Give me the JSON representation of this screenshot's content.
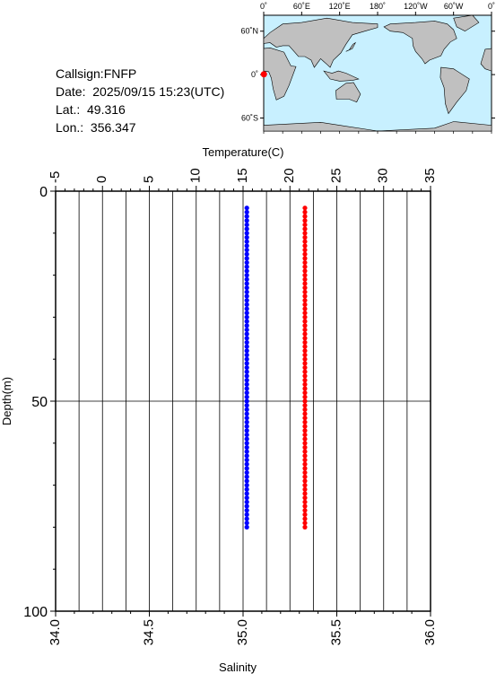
{
  "info": {
    "callsign": "Callsign:FNFP",
    "date": "Date:  2025/09/15 15:23(UTC)",
    "lat": "Lat.:  49.316",
    "lon": "Lon.:  356.347"
  },
  "map": {
    "top_ticks": [
      "0˚",
      "60˚E",
      "120˚E",
      "180˚",
      "120˚W",
      "60˚W",
      "0˚"
    ],
    "left_ticks": [
      "60˚N",
      "0˚",
      "60˚S"
    ],
    "marker_color": "#ff0000",
    "ocean_color": "#c8f0ff",
    "land_color": "#c0c0c0"
  },
  "chart_data": {
    "type": "scatter",
    "top_axis": {
      "label": "Temperature(C)",
      "range": [
        -5,
        35
      ],
      "ticks": [
        "-5",
        "0",
        "5",
        "10",
        "15",
        "20",
        "25",
        "30",
        "35"
      ]
    },
    "bottom_axis": {
      "label": "Salinity",
      "range": [
        34.0,
        36.0
      ],
      "ticks": [
        "34.0",
        "34.5",
        "35.0",
        "35.5",
        "36.0"
      ]
    },
    "y_axis": {
      "label": "Depth(m)",
      "range": [
        0,
        100
      ],
      "inverted": true,
      "ticks": [
        "0",
        "50",
        "100"
      ]
    },
    "grid": true,
    "series": [
      {
        "color": "#ff0000",
        "axis": "temperature",
        "points": [
          [
            21.6,
            4
          ],
          [
            21.6,
            5
          ],
          [
            21.6,
            6
          ],
          [
            21.6,
            7
          ],
          [
            21.6,
            8
          ],
          [
            21.6,
            9
          ],
          [
            21.6,
            10
          ],
          [
            21.6,
            11
          ],
          [
            21.6,
            12
          ],
          [
            21.6,
            13
          ],
          [
            21.6,
            14
          ],
          [
            21.6,
            15
          ],
          [
            21.6,
            16
          ],
          [
            21.6,
            17
          ],
          [
            21.6,
            18
          ],
          [
            21.6,
            19
          ],
          [
            21.6,
            20
          ],
          [
            21.6,
            21
          ],
          [
            21.6,
            22
          ],
          [
            21.6,
            23
          ],
          [
            21.6,
            24
          ],
          [
            21.6,
            25
          ],
          [
            21.6,
            26
          ],
          [
            21.6,
            27
          ],
          [
            21.6,
            28
          ],
          [
            21.6,
            29
          ],
          [
            21.6,
            30
          ],
          [
            21.6,
            31
          ],
          [
            21.6,
            32
          ],
          [
            21.6,
            33
          ],
          [
            21.6,
            34
          ],
          [
            21.6,
            35
          ],
          [
            21.6,
            36
          ],
          [
            21.6,
            37
          ],
          [
            21.6,
            38
          ],
          [
            21.6,
            39
          ],
          [
            21.6,
            40
          ],
          [
            21.6,
            41
          ],
          [
            21.6,
            42
          ],
          [
            21.6,
            43
          ],
          [
            21.6,
            44
          ],
          [
            21.6,
            45
          ],
          [
            21.6,
            46
          ],
          [
            21.6,
            47
          ],
          [
            21.6,
            48
          ],
          [
            21.6,
            49
          ],
          [
            21.6,
            50
          ],
          [
            21.6,
            51
          ],
          [
            21.6,
            52
          ],
          [
            21.6,
            53
          ],
          [
            21.6,
            54
          ],
          [
            21.6,
            55
          ],
          [
            21.6,
            56
          ],
          [
            21.6,
            57
          ],
          [
            21.6,
            58
          ],
          [
            21.6,
            59
          ],
          [
            21.6,
            60
          ],
          [
            21.6,
            61
          ],
          [
            21.6,
            62
          ],
          [
            21.6,
            63
          ],
          [
            21.6,
            64
          ],
          [
            21.6,
            65
          ],
          [
            21.6,
            66
          ],
          [
            21.6,
            67
          ],
          [
            21.6,
            68
          ],
          [
            21.6,
            69
          ],
          [
            21.6,
            70
          ],
          [
            21.6,
            71
          ],
          [
            21.6,
            72
          ],
          [
            21.6,
            73
          ],
          [
            21.6,
            74
          ],
          [
            21.6,
            75
          ],
          [
            21.6,
            76
          ],
          [
            21.6,
            77
          ],
          [
            21.6,
            78
          ],
          [
            21.6,
            79
          ],
          [
            21.6,
            80
          ]
        ]
      },
      {
        "color": "#0000ff",
        "axis": "salinity",
        "points": [
          [
            35.02,
            4
          ],
          [
            35.02,
            5
          ],
          [
            35.02,
            6
          ],
          [
            35.02,
            7
          ],
          [
            35.02,
            8
          ],
          [
            35.02,
            9
          ],
          [
            35.02,
            10
          ],
          [
            35.02,
            11
          ],
          [
            35.02,
            12
          ],
          [
            35.02,
            13
          ],
          [
            35.02,
            14
          ],
          [
            35.02,
            15
          ],
          [
            35.02,
            16
          ],
          [
            35.02,
            17
          ],
          [
            35.02,
            18
          ],
          [
            35.02,
            19
          ],
          [
            35.02,
            20
          ],
          [
            35.02,
            21
          ],
          [
            35.02,
            22
          ],
          [
            35.02,
            23
          ],
          [
            35.02,
            24
          ],
          [
            35.02,
            25
          ],
          [
            35.02,
            26
          ],
          [
            35.02,
            27
          ],
          [
            35.02,
            28
          ],
          [
            35.02,
            29
          ],
          [
            35.02,
            30
          ],
          [
            35.02,
            31
          ],
          [
            35.02,
            32
          ],
          [
            35.02,
            33
          ],
          [
            35.02,
            34
          ],
          [
            35.02,
            35
          ],
          [
            35.02,
            36
          ],
          [
            35.02,
            37
          ],
          [
            35.02,
            38
          ],
          [
            35.02,
            39
          ],
          [
            35.02,
            40
          ],
          [
            35.02,
            41
          ],
          [
            35.02,
            42
          ],
          [
            35.02,
            43
          ],
          [
            35.02,
            44
          ],
          [
            35.02,
            45
          ],
          [
            35.02,
            46
          ],
          [
            35.02,
            47
          ],
          [
            35.02,
            48
          ],
          [
            35.02,
            49
          ],
          [
            35.02,
            50
          ],
          [
            35.02,
            51
          ],
          [
            35.02,
            52
          ],
          [
            35.02,
            53
          ],
          [
            35.02,
            54
          ],
          [
            35.02,
            55
          ],
          [
            35.02,
            56
          ],
          [
            35.02,
            57
          ],
          [
            35.02,
            58
          ],
          [
            35.02,
            59
          ],
          [
            35.02,
            60
          ],
          [
            35.02,
            61
          ],
          [
            35.02,
            62
          ],
          [
            35.02,
            63
          ],
          [
            35.02,
            64
          ],
          [
            35.02,
            65
          ],
          [
            35.02,
            66
          ],
          [
            35.02,
            67
          ],
          [
            35.02,
            68
          ],
          [
            35.02,
            69
          ],
          [
            35.02,
            70
          ],
          [
            35.02,
            71
          ],
          [
            35.02,
            72
          ],
          [
            35.02,
            73
          ],
          [
            35.02,
            74
          ],
          [
            35.02,
            75
          ],
          [
            35.02,
            76
          ],
          [
            35.02,
            77
          ],
          [
            35.02,
            78
          ],
          [
            35.02,
            79
          ],
          [
            35.02,
            80
          ]
        ]
      }
    ]
  }
}
